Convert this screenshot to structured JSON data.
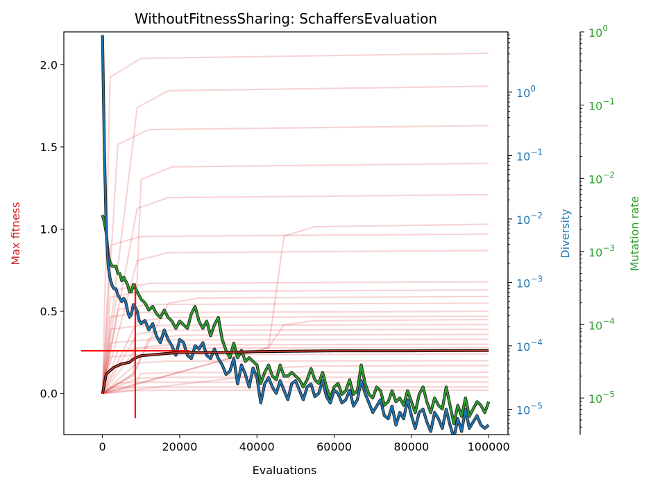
{
  "chart_data": {
    "type": "line",
    "title": "WithoutFitnessSharing: SchaffersEvaluation",
    "xlabel": "Evaluations",
    "ylabel_left": "Max fitness",
    "ylabel_right1": "Diversity",
    "ylabel_right2": "Mutation rate",
    "xlim": [
      -10000,
      105000
    ],
    "ylim_left": [
      -0.25,
      2.2
    ],
    "ylim_diversity_log10": [
      -5.4,
      0.95
    ],
    "ylim_mutation_log10": [
      -5.5,
      0
    ],
    "x_ticks": [
      0,
      20000,
      40000,
      60000,
      80000,
      100000
    ],
    "x_tick_labels": [
      "0",
      "20000",
      "40000",
      "60000",
      "80000",
      "100000"
    ],
    "y_ticks_left": [
      0.0,
      0.5,
      1.0,
      1.5,
      2.0
    ],
    "y_tick_labels_left": [
      "0.0",
      "0.5",
      "1.0",
      "1.5",
      "2.0"
    ],
    "diversity_tick_exponents": [
      0,
      -1,
      -2,
      -3,
      -4,
      -5
    ],
    "mutation_tick_exponents": [
      0,
      -1,
      -2,
      -3,
      -4,
      -5
    ],
    "log_tick_base": "10",
    "colors": {
      "fitness_runs": "#d62728",
      "diversity": "#1f77b4",
      "mutation": "#2ca02c",
      "crosshair": "#ff0000",
      "mean_outline": "#000000"
    },
    "run_plateaus": [
      2.07,
      1.87,
      1.63,
      1.4,
      1.21,
      1.03,
      0.97,
      0.87,
      0.68,
      0.63,
      0.59,
      0.55,
      0.5,
      0.47,
      0.45,
      0.42,
      0.39,
      0.36,
      0.33,
      0.3,
      0.28,
      0.24,
      0.2,
      0.17,
      0.13,
      0.1,
      0.07,
      0.04,
      0.02
    ],
    "mean_fitness": {
      "x": [
        0,
        1000,
        3000,
        5000,
        7000,
        8000,
        10000,
        15000,
        20000,
        30000,
        40000,
        60000,
        80000,
        100000
      ],
      "y": [
        0.0,
        0.12,
        0.16,
        0.18,
        0.19,
        0.21,
        0.23,
        0.24,
        0.25,
        0.25,
        0.255,
        0.26,
        0.26,
        0.262
      ]
    },
    "crosshair": {
      "x": 8500,
      "y": 0.26,
      "x_half_width": 14000,
      "y_half_height": 0.41
    },
    "diversity_log10": {
      "x": [
        0,
        500,
        1000,
        1500,
        2000,
        2500,
        3000,
        3500,
        4000,
        4500,
        5000,
        5500,
        6000,
        6500,
        7000,
        7500,
        8000,
        8500,
        9000,
        9500,
        10000,
        11000,
        12000,
        13000,
        14000,
        15000,
        16000,
        17000,
        18000,
        19000,
        20000,
        21000,
        22000,
        23000,
        24000,
        25000,
        26000,
        27000,
        28000,
        29000,
        30000,
        31000,
        32000,
        33000,
        34000,
        35000,
        36000,
        37000,
        38000,
        39000,
        40000,
        41000,
        42000,
        43000,
        44000,
        45000,
        46000,
        47000,
        48000,
        49000,
        50000,
        51000,
        52000,
        53000,
        54000,
        55000,
        56000,
        57000,
        58000,
        59000,
        60000,
        61000,
        62000,
        63000,
        64000,
        65000,
        66000,
        67000,
        68000,
        69000,
        70000,
        71000,
        72000,
        73000,
        74000,
        75000,
        76000,
        77000,
        78000,
        79000,
        80000,
        81000,
        82000,
        83000,
        84000,
        85000,
        86000,
        87000,
        88000,
        89000,
        90000,
        91000,
        92000,
        93000,
        94000,
        95000,
        96000,
        97000,
        98000,
        99000,
        100000
      ],
      "y": [
        0.9,
        -0.9,
        -2.2,
        -2.75,
        -2.95,
        -3.05,
        -3.1,
        -3.1,
        -3.2,
        -3.25,
        -3.3,
        -3.25,
        -3.3,
        -3.45,
        -3.55,
        -3.5,
        -3.35,
        -3.4,
        -3.45,
        -3.6,
        -3.65,
        -3.6,
        -3.75,
        -3.65,
        -3.85,
        -3.95,
        -3.75,
        -3.9,
        -4.0,
        -4.15,
        -3.9,
        -3.95,
        -4.15,
        -4.2,
        -4.0,
        -4.05,
        -3.95,
        -4.15,
        -4.2,
        -4.05,
        -4.2,
        -4.3,
        -4.45,
        -4.4,
        -4.2,
        -4.6,
        -4.3,
        -4.45,
        -4.65,
        -4.35,
        -4.5,
        -4.9,
        -4.6,
        -4.5,
        -4.65,
        -4.75,
        -4.55,
        -4.7,
        -4.85,
        -4.6,
        -4.55,
        -4.7,
        -4.85,
        -4.65,
        -4.6,
        -4.8,
        -4.75,
        -4.55,
        -4.8,
        -4.9,
        -4.7,
        -4.75,
        -4.9,
        -4.85,
        -4.7,
        -4.95,
        -4.85,
        -4.55,
        -4.75,
        -4.9,
        -5.05,
        -4.95,
        -4.85,
        -5.1,
        -5.15,
        -4.95,
        -5.25,
        -5.05,
        -5.15,
        -4.85,
        -5.1,
        -5.3,
        -5.05,
        -5.0,
        -5.2,
        -5.35,
        -5.05,
        -5.15,
        -5.3,
        -5.0,
        -5.25,
        -5.45,
        -5.15,
        -5.35,
        -5.0,
        -5.3,
        -5.2,
        -5.1,
        -5.25,
        -5.3,
        -5.25
      ]
    },
    "mutation_log10": {
      "x": [
        0,
        500,
        1000,
        1500,
        2000,
        2500,
        3000,
        3500,
        4000,
        4500,
        5000,
        5500,
        6000,
        6500,
        7000,
        7500,
        8000,
        8500,
        9000,
        9500,
        10000,
        11000,
        12000,
        13000,
        14000,
        15000,
        16000,
        17000,
        18000,
        19000,
        20000,
        21000,
        22000,
        23000,
        24000,
        25000,
        26000,
        27000,
        28000,
        29000,
        30000,
        31000,
        32000,
        33000,
        34000,
        35000,
        36000,
        37000,
        38000,
        39000,
        40000,
        41000,
        42000,
        43000,
        44000,
        45000,
        46000,
        47000,
        48000,
        49000,
        50000,
        51000,
        52000,
        53000,
        54000,
        55000,
        56000,
        57000,
        58000,
        59000,
        60000,
        61000,
        62000,
        63000,
        64000,
        65000,
        66000,
        67000,
        68000,
        69000,
        70000,
        71000,
        72000,
        73000,
        74000,
        75000,
        76000,
        77000,
        78000,
        79000,
        80000,
        81000,
        82000,
        83000,
        84000,
        85000,
        86000,
        87000,
        88000,
        89000,
        90000,
        91000,
        92000,
        93000,
        94000,
        95000,
        96000,
        97000,
        98000,
        99000,
        100000
      ],
      "y": [
        -2.5,
        -2.6,
        -2.75,
        -3.05,
        -3.15,
        -3.2,
        -3.2,
        -3.2,
        -3.3,
        -3.3,
        -3.4,
        -3.35,
        -3.4,
        -3.45,
        -3.55,
        -3.55,
        -3.45,
        -3.5,
        -3.55,
        -3.6,
        -3.65,
        -3.7,
        -3.8,
        -3.75,
        -3.85,
        -3.9,
        -3.8,
        -3.9,
        -3.95,
        -4.05,
        -3.95,
        -4.0,
        -4.05,
        -3.85,
        -3.75,
        -3.95,
        -4.05,
        -3.95,
        -4.15,
        -4.0,
        -3.9,
        -4.2,
        -4.35,
        -4.45,
        -4.25,
        -4.45,
        -4.35,
        -4.5,
        -4.45,
        -4.5,
        -4.55,
        -4.8,
        -4.65,
        -4.55,
        -4.7,
        -4.75,
        -4.55,
        -4.7,
        -4.7,
        -4.65,
        -4.7,
        -4.75,
        -4.85,
        -4.75,
        -4.6,
        -4.75,
        -4.8,
        -4.65,
        -4.85,
        -5.0,
        -4.85,
        -4.8,
        -4.95,
        -4.9,
        -4.75,
        -4.95,
        -4.9,
        -4.55,
        -4.8,
        -4.95,
        -5.0,
        -4.85,
        -4.9,
        -5.1,
        -5.05,
        -4.9,
        -5.05,
        -5.0,
        -5.1,
        -4.9,
        -5.05,
        -5.2,
        -4.95,
        -4.85,
        -5.05,
        -5.2,
        -5.0,
        -5.1,
        -5.15,
        -4.85,
        -5.1,
        -5.35,
        -5.1,
        -5.25,
        -5.0,
        -5.25,
        -5.15,
        -5.05,
        -5.1,
        -5.2,
        -5.05
      ]
    }
  }
}
